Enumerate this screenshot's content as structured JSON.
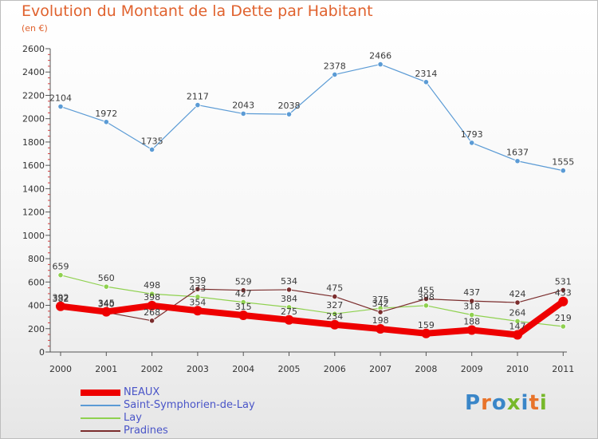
{
  "header": {
    "title": "Evolution du Montant de la Dette par Habitant",
    "subtitle": "(en €)"
  },
  "brand": {
    "text": "Proxiti",
    "letter_colors": [
      "#3a86c8",
      "#e8732a",
      "#3a86c8",
      "#77b82a",
      "#3a86c8",
      "#e8732a",
      "#77b82a"
    ]
  },
  "chart_data": {
    "type": "line",
    "title": "Evolution du Montant de la Dette par Habitant",
    "subtitle": "(en €)",
    "xlabel": "",
    "ylabel": "",
    "x": [
      "2000",
      "2001",
      "2002",
      "2003",
      "2004",
      "2005",
      "2006",
      "2007",
      "2008",
      "2009",
      "2010",
      "2011"
    ],
    "ylim": [
      0,
      2600
    ],
    "yticks": [
      0,
      200,
      400,
      600,
      800,
      1000,
      1200,
      1400,
      1600,
      1800,
      2000,
      2200,
      2400,
      2600
    ],
    "grid": false,
    "legend_position": "bottom-left",
    "series": [
      {
        "name": "NEAUX",
        "color": "#ee0000",
        "values": [
          392,
          345,
          398,
          354,
          315,
          275,
          234,
          198,
          159,
          188,
          147,
          433
        ],
        "labels": [
          "392",
          "345",
          "398",
          "354",
          "315",
          "275",
          "234",
          "198",
          "159",
          "188",
          "147",
          "433"
        ]
      },
      {
        "name": "Saint-Symphorien-de-Lay",
        "color": "#5b9bd5",
        "values": [
          2104,
          1972,
          1735,
          2117,
          2043,
          2038,
          2378,
          2466,
          2314,
          1793,
          1637,
          1555
        ],
        "labels": [
          "2104",
          "1972",
          "1735",
          "2117",
          "2043",
          "2038",
          "2378",
          "2466",
          "2314",
          "1793",
          "1637",
          "1555"
        ]
      },
      {
        "name": "Lay",
        "color": "#8fd14f",
        "values": [
          659,
          560,
          498,
          473,
          427,
          384,
          327,
          375,
          398,
          318,
          264,
          219
        ],
        "labels": [
          "659",
          "560",
          "498",
          "473",
          "427",
          "384",
          "327",
          "375",
          "398",
          "318",
          "264",
          "219"
        ]
      },
      {
        "name": "Pradines",
        "color": "#7b2d2d",
        "values": [
          382,
          340,
          268,
          539,
          529,
          534,
          475,
          342,
          455,
          437,
          424,
          531
        ],
        "labels": [
          "382",
          "340",
          "268",
          "539",
          "529",
          "534",
          "475",
          "342",
          "455",
          "437",
          "424",
          "531"
        ]
      }
    ]
  }
}
